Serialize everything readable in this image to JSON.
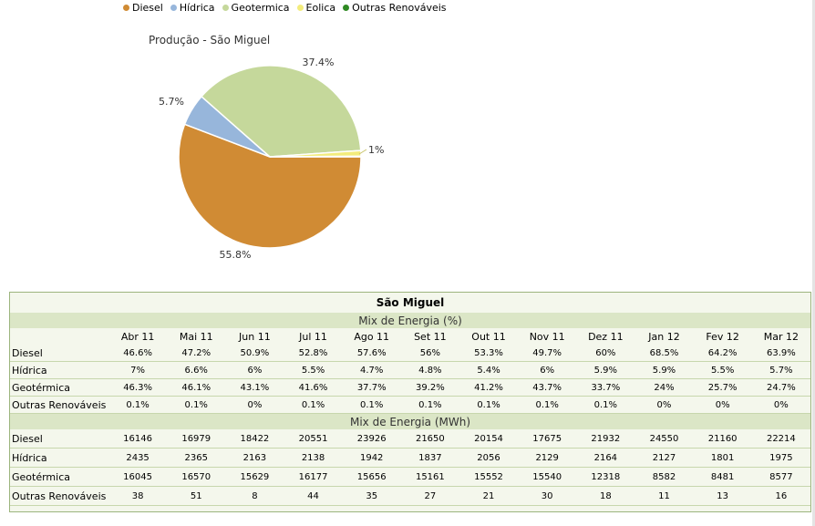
{
  "legend": [
    {
      "label": "Diesel",
      "color": "#d08b34"
    },
    {
      "label": "Hídrica",
      "color": "#97b6db"
    },
    {
      "label": "Geotermica",
      "color": "#c5d89b"
    },
    {
      "label": "Eolica",
      "color": "#f3ec7c"
    },
    {
      "label": "Outras Renováveis",
      "color": "#2f8a23"
    }
  ],
  "chart_data": {
    "type": "pie",
    "title": "Produção - São Miguel",
    "slices": [
      {
        "name": "Diesel",
        "value": 55.8,
        "label": "55.8%",
        "color": "#d08b34"
      },
      {
        "name": "Hídrica",
        "value": 5.7,
        "label": "5.7%",
        "color": "#97b6db"
      },
      {
        "name": "Geotermica",
        "value": 37.4,
        "label": "37.4%",
        "color": "#c5d89b"
      },
      {
        "name": "Eolica",
        "value": 1.0,
        "label": "1%",
        "color": "#f3ec7c"
      },
      {
        "name": "Outras Renováveis",
        "value": 0.1,
        "label": "",
        "color": "#2f8a23"
      }
    ]
  },
  "table": {
    "title": "São Miguel",
    "section_pct": "Mix de Energia (%)",
    "section_mwh": "Mix de Energia (MWh)",
    "months": [
      "Abr 11",
      "Mai 11",
      "Jun 11",
      "Jul 11",
      "Ago 11",
      "Set 11",
      "Out 11",
      "Nov 11",
      "Dez 11",
      "Jan 12",
      "Fev 12",
      "Mar 12"
    ],
    "pct_rows": [
      {
        "label": "Diesel",
        "values": [
          "46.6%",
          "47.2%",
          "50.9%",
          "52.8%",
          "57.6%",
          "56%",
          "53.3%",
          "49.7%",
          "60%",
          "68.5%",
          "64.2%",
          "63.9%"
        ]
      },
      {
        "label": "Hídrica",
        "values": [
          "7%",
          "6.6%",
          "6%",
          "5.5%",
          "4.7%",
          "4.8%",
          "5.4%",
          "6%",
          "5.9%",
          "5.9%",
          "5.5%",
          "5.7%"
        ]
      },
      {
        "label": "Geotérmica",
        "values": [
          "46.3%",
          "46.1%",
          "43.1%",
          "41.6%",
          "37.7%",
          "39.2%",
          "41.2%",
          "43.7%",
          "33.7%",
          "24%",
          "25.7%",
          "24.7%"
        ]
      },
      {
        "label": "Outras Renováveis",
        "values": [
          "0.1%",
          "0.1%",
          "0%",
          "0.1%",
          "0.1%",
          "0.1%",
          "0.1%",
          "0.1%",
          "0.1%",
          "0%",
          "0%",
          "0%"
        ]
      }
    ],
    "mwh_rows": [
      {
        "label": "Diesel",
        "values": [
          "16146",
          "16979",
          "18422",
          "20551",
          "23926",
          "21650",
          "20154",
          "17675",
          "21932",
          "24550",
          "21160",
          "22214"
        ]
      },
      {
        "label": "Hídrica",
        "values": [
          "2435",
          "2365",
          "2163",
          "2138",
          "1942",
          "1837",
          "2056",
          "2129",
          "2164",
          "2127",
          "1801",
          "1975"
        ]
      },
      {
        "label": "Geotérmica",
        "values": [
          "16045",
          "16570",
          "15629",
          "16177",
          "15656",
          "15161",
          "15552",
          "15540",
          "12318",
          "8582",
          "8481",
          "8577"
        ]
      },
      {
        "label": "Outras Renováveis",
        "values": [
          "38",
          "51",
          "8",
          "44",
          "35",
          "27",
          "21",
          "30",
          "18",
          "11",
          "13",
          "16"
        ]
      }
    ]
  }
}
